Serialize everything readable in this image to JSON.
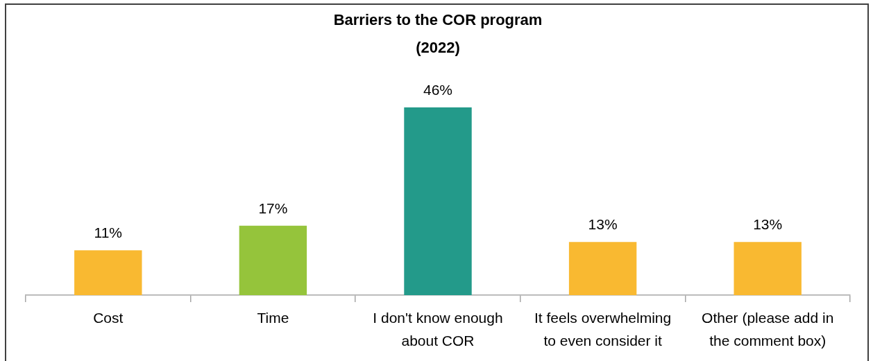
{
  "chart_data": {
    "type": "bar",
    "title": "Barriers to the COR program",
    "subtitle": "(2022)",
    "categories": [
      "Cost",
      "Time",
      "I don't know enough about COR",
      "It feels overwhelming to even consider it",
      "Other (please add in the comment box)"
    ],
    "values": [
      11,
      17,
      46,
      13,
      13
    ],
    "colors": [
      "#f9b931",
      "#95c43b",
      "#239a8a",
      "#f9b931",
      "#f9b931"
    ],
    "value_labels": [
      "11%",
      "17%",
      "46%",
      "13%",
      "13%"
    ]
  }
}
